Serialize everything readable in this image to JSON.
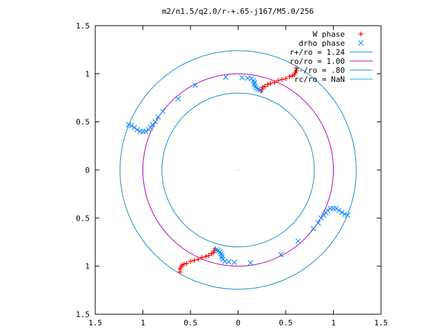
{
  "chart_data": {
    "type": "scatter",
    "title": "m2/n1.5/q2.0/r-+.65-j167/M5.0/256",
    "xlim": [
      -1.5,
      1.5
    ],
    "ylim": [
      -1.5,
      1.5
    ],
    "x_ticks": [
      {
        "value": -1.5,
        "label": "1.5"
      },
      {
        "value": -1.0,
        "label": "1"
      },
      {
        "value": -0.5,
        "label": "0.5"
      },
      {
        "value": 0,
        "label": "0"
      },
      {
        "value": 0.5,
        "label": "0.5"
      },
      {
        "value": 1.0,
        "label": "1"
      },
      {
        "value": 1.5,
        "label": "1.5"
      }
    ],
    "y_ticks": [
      {
        "value": 1.5,
        "label": "1.5"
      },
      {
        "value": 1.0,
        "label": "1"
      },
      {
        "value": 0.5,
        "label": "0.5"
      },
      {
        "value": 0,
        "label": "0"
      },
      {
        "value": -0.5,
        "label": "0.5"
      },
      {
        "value": -1.0,
        "label": "1"
      },
      {
        "value": -1.5,
        "label": "1.5"
      }
    ],
    "legend_position": "top-right",
    "grid": false,
    "series": [
      {
        "name": "W phase",
        "marker": "plus",
        "color": "#ff0000",
        "points": [
          [
            0.61,
            1.06
          ],
          [
            0.61,
            1.03
          ],
          [
            0.6,
            1.01
          ],
          [
            0.59,
            0.99
          ],
          [
            0.57,
            0.98
          ],
          [
            0.54,
            0.97
          ],
          [
            0.5,
            0.95
          ],
          [
            0.46,
            0.94
          ],
          [
            0.42,
            0.93
          ],
          [
            0.38,
            0.91
          ],
          [
            0.34,
            0.9
          ],
          [
            0.31,
            0.89
          ],
          [
            0.28,
            0.87
          ],
          [
            0.26,
            0.86
          ],
          [
            0.25,
            0.84
          ],
          [
            0.24,
            0.82
          ],
          [
            -0.61,
            -1.06
          ],
          [
            -0.61,
            -1.03
          ],
          [
            -0.6,
            -1.01
          ],
          [
            -0.59,
            -0.99
          ],
          [
            -0.57,
            -0.98
          ],
          [
            -0.54,
            -0.97
          ],
          [
            -0.5,
            -0.95
          ],
          [
            -0.46,
            -0.94
          ],
          [
            -0.42,
            -0.93
          ],
          [
            -0.38,
            -0.91
          ],
          [
            -0.34,
            -0.9
          ],
          [
            -0.31,
            -0.89
          ],
          [
            -0.28,
            -0.87
          ],
          [
            -0.26,
            -0.86
          ],
          [
            -0.25,
            -0.84
          ],
          [
            -0.24,
            -0.82
          ]
        ]
      },
      {
        "name": "drho phase",
        "marker": "cross",
        "color": "#1e90ff",
        "points": [
          [
            0.23,
            0.83
          ],
          [
            0.21,
            0.84
          ],
          [
            0.19,
            0.85
          ],
          [
            0.18,
            0.87
          ],
          [
            0.17,
            0.89
          ],
          [
            0.17,
            0.91
          ],
          [
            0.16,
            0.93
          ],
          [
            0.14,
            0.95
          ],
          [
            0.1,
            0.955
          ],
          [
            0.04,
            0.96
          ],
          [
            -0.13,
            0.965
          ],
          [
            -0.45,
            0.88
          ],
          [
            -0.63,
            0.74
          ],
          [
            -0.79,
            0.61
          ],
          [
            -0.84,
            0.55
          ],
          [
            -0.87,
            0.5
          ],
          [
            -0.9,
            0.47
          ],
          [
            -0.92,
            0.44
          ],
          [
            -0.94,
            0.42
          ],
          [
            -0.97,
            0.4
          ],
          [
            -1.0,
            0.4
          ],
          [
            -1.03,
            0.4
          ],
          [
            -1.06,
            0.42
          ],
          [
            -1.09,
            0.44
          ],
          [
            -1.12,
            0.46
          ],
          [
            -1.15,
            0.47
          ],
          [
            -0.23,
            -0.83
          ],
          [
            -0.21,
            -0.84
          ],
          [
            -0.19,
            -0.85
          ],
          [
            -0.18,
            -0.87
          ],
          [
            -0.17,
            -0.89
          ],
          [
            -0.17,
            -0.91
          ],
          [
            -0.16,
            -0.93
          ],
          [
            -0.14,
            -0.95
          ],
          [
            -0.1,
            -0.955
          ],
          [
            -0.04,
            -0.96
          ],
          [
            0.13,
            -0.965
          ],
          [
            0.45,
            -0.88
          ],
          [
            0.63,
            -0.74
          ],
          [
            0.79,
            -0.61
          ],
          [
            0.84,
            -0.55
          ],
          [
            0.87,
            -0.5
          ],
          [
            0.9,
            -0.47
          ],
          [
            0.92,
            -0.44
          ],
          [
            0.94,
            -0.42
          ],
          [
            0.97,
            -0.4
          ],
          [
            1.0,
            -0.4
          ],
          [
            1.03,
            -0.4
          ],
          [
            1.06,
            -0.42
          ],
          [
            1.09,
            -0.44
          ],
          [
            1.12,
            -0.46
          ],
          [
            1.15,
            -0.47
          ]
        ]
      }
    ],
    "circles": [
      {
        "name": "r+/ro = 1.24",
        "radius": 1.24,
        "color": "#1e88c8"
      },
      {
        "name": "ro/ro = 1.00",
        "radius": 1.0,
        "color": "#b000b0"
      },
      {
        "name": "r-/ro = .80",
        "radius": 0.8,
        "color": "#1e88c8"
      },
      {
        "name": "rc/ro = NaN",
        "radius": null,
        "color": "#00c0e0"
      }
    ]
  }
}
